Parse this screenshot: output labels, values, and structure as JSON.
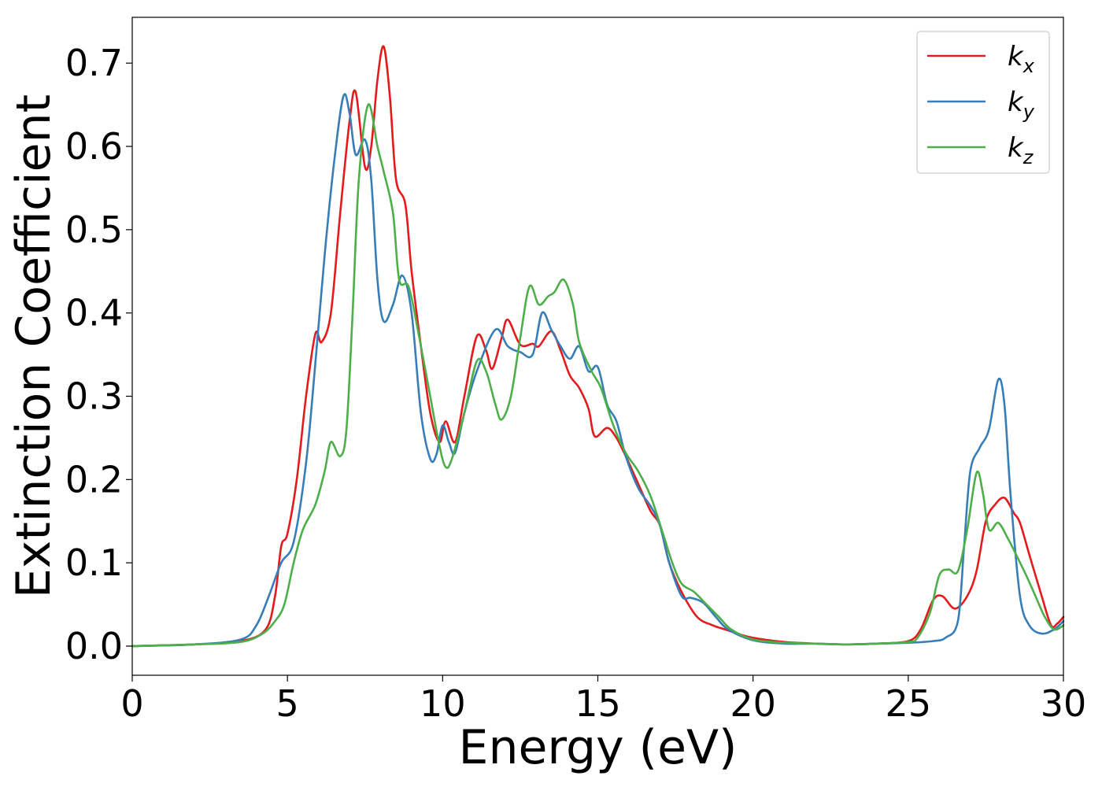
{
  "chart_data": {
    "type": "line",
    "title": "",
    "xlabel": "Energy (eV)",
    "ylabel": "Extinction Coefficient",
    "xlim": [
      0,
      30
    ],
    "ylim": [
      -0.035,
      0.755
    ],
    "xticks": [
      0,
      5,
      10,
      15,
      20,
      25,
      30
    ],
    "yticks": [
      0.0,
      0.1,
      0.2,
      0.3,
      0.4,
      0.5,
      0.6,
      0.7
    ],
    "xtick_labels": [
      "0",
      "5",
      "10",
      "15",
      "20",
      "25",
      "30"
    ],
    "ytick_labels": [
      "0.0",
      "0.1",
      "0.2",
      "0.3",
      "0.4",
      "0.5",
      "0.6",
      "0.7"
    ],
    "grid": false,
    "legend_position": "top-right",
    "series": [
      {
        "name": "k",
        "subscript": "x",
        "color": "#e41a1c",
        "points": [
          [
            0,
            0.0
          ],
          [
            2,
            0.002
          ],
          [
            3.5,
            0.006
          ],
          [
            4.3,
            0.02
          ],
          [
            4.6,
            0.06
          ],
          [
            4.8,
            0.12
          ],
          [
            5.0,
            0.135
          ],
          [
            5.3,
            0.2
          ],
          [
            5.6,
            0.3
          ],
          [
            5.9,
            0.375
          ],
          [
            6.1,
            0.365
          ],
          [
            6.4,
            0.4
          ],
          [
            6.7,
            0.52
          ],
          [
            7.0,
            0.63
          ],
          [
            7.2,
            0.665
          ],
          [
            7.5,
            0.575
          ],
          [
            7.7,
            0.6
          ],
          [
            7.9,
            0.68
          ],
          [
            8.1,
            0.72
          ],
          [
            8.3,
            0.66
          ],
          [
            8.5,
            0.56
          ],
          [
            8.8,
            0.53
          ],
          [
            9.0,
            0.45
          ],
          [
            9.3,
            0.36
          ],
          [
            9.6,
            0.28
          ],
          [
            9.9,
            0.245
          ],
          [
            10.1,
            0.27
          ],
          [
            10.4,
            0.245
          ],
          [
            10.7,
            0.3
          ],
          [
            11.1,
            0.372
          ],
          [
            11.4,
            0.355
          ],
          [
            11.6,
            0.333
          ],
          [
            11.9,
            0.37
          ],
          [
            12.1,
            0.392
          ],
          [
            12.5,
            0.362
          ],
          [
            12.9,
            0.363
          ],
          [
            13.1,
            0.36
          ],
          [
            13.5,
            0.378
          ],
          [
            13.8,
            0.355
          ],
          [
            14.1,
            0.325
          ],
          [
            14.4,
            0.31
          ],
          [
            14.7,
            0.285
          ],
          [
            14.9,
            0.252
          ],
          [
            15.3,
            0.262
          ],
          [
            15.6,
            0.25
          ],
          [
            15.9,
            0.228
          ],
          [
            16.3,
            0.195
          ],
          [
            16.7,
            0.162
          ],
          [
            17.0,
            0.145
          ],
          [
            17.3,
            0.1
          ],
          [
            17.7,
            0.065
          ],
          [
            18.2,
            0.035
          ],
          [
            18.7,
            0.025
          ],
          [
            19.1,
            0.02
          ],
          [
            19.5,
            0.015
          ],
          [
            20,
            0.01
          ],
          [
            21,
            0.005
          ],
          [
            22,
            0.003
          ],
          [
            23,
            0.002
          ],
          [
            24,
            0.003
          ],
          [
            25,
            0.006
          ],
          [
            25.4,
            0.02
          ],
          [
            25.8,
            0.055
          ],
          [
            26.1,
            0.06
          ],
          [
            26.5,
            0.045
          ],
          [
            26.9,
            0.06
          ],
          [
            27.2,
            0.09
          ],
          [
            27.5,
            0.15
          ],
          [
            27.8,
            0.17
          ],
          [
            28.1,
            0.178
          ],
          [
            28.4,
            0.16
          ],
          [
            28.6,
            0.148
          ],
          [
            28.9,
            0.11
          ],
          [
            29.3,
            0.06
          ],
          [
            29.6,
            0.025
          ],
          [
            29.8,
            0.027
          ],
          [
            30,
            0.035
          ]
        ]
      },
      {
        "name": "k",
        "subscript": "y",
        "color": "#377eb8",
        "points": [
          [
            0,
            0.0
          ],
          [
            2,
            0.002
          ],
          [
            3.5,
            0.008
          ],
          [
            4.0,
            0.025
          ],
          [
            4.4,
            0.06
          ],
          [
            4.8,
            0.1
          ],
          [
            5.2,
            0.125
          ],
          [
            5.6,
            0.22
          ],
          [
            5.9,
            0.34
          ],
          [
            6.2,
            0.47
          ],
          [
            6.5,
            0.58
          ],
          [
            6.8,
            0.66
          ],
          [
            7.0,
            0.64
          ],
          [
            7.2,
            0.59
          ],
          [
            7.5,
            0.608
          ],
          [
            7.7,
            0.56
          ],
          [
            7.9,
            0.44
          ],
          [
            8.1,
            0.39
          ],
          [
            8.4,
            0.41
          ],
          [
            8.7,
            0.445
          ],
          [
            9.0,
            0.4
          ],
          [
            9.3,
            0.28
          ],
          [
            9.6,
            0.225
          ],
          [
            9.8,
            0.23
          ],
          [
            10.0,
            0.265
          ],
          [
            10.2,
            0.245
          ],
          [
            10.4,
            0.232
          ],
          [
            10.7,
            0.28
          ],
          [
            11.1,
            0.33
          ],
          [
            11.7,
            0.38
          ],
          [
            12.1,
            0.36
          ],
          [
            12.5,
            0.353
          ],
          [
            12.9,
            0.35
          ],
          [
            13.2,
            0.4
          ],
          [
            13.5,
            0.38
          ],
          [
            13.8,
            0.36
          ],
          [
            14.1,
            0.345
          ],
          [
            14.4,
            0.36
          ],
          [
            14.7,
            0.33
          ],
          [
            15.0,
            0.335
          ],
          [
            15.3,
            0.29
          ],
          [
            15.6,
            0.27
          ],
          [
            15.9,
            0.228
          ],
          [
            16.3,
            0.19
          ],
          [
            16.7,
            0.168
          ],
          [
            17.0,
            0.145
          ],
          [
            17.3,
            0.1
          ],
          [
            17.7,
            0.06
          ],
          [
            18.0,
            0.058
          ],
          [
            18.4,
            0.052
          ],
          [
            18.8,
            0.035
          ],
          [
            19.2,
            0.02
          ],
          [
            20,
            0.007
          ],
          [
            21,
            0.003
          ],
          [
            22,
            0.003
          ],
          [
            23,
            0.002
          ],
          [
            24,
            0.003
          ],
          [
            25,
            0.004
          ],
          [
            25.8,
            0.006
          ],
          [
            26.2,
            0.01
          ],
          [
            26.6,
            0.03
          ],
          [
            26.8,
            0.12
          ],
          [
            27.0,
            0.21
          ],
          [
            27.3,
            0.238
          ],
          [
            27.6,
            0.26
          ],
          [
            27.9,
            0.32
          ],
          [
            28.1,
            0.29
          ],
          [
            28.3,
            0.18
          ],
          [
            28.6,
            0.06
          ],
          [
            28.9,
            0.025
          ],
          [
            29.3,
            0.015
          ],
          [
            29.7,
            0.02
          ],
          [
            30,
            0.03
          ]
        ]
      },
      {
        "name": "k",
        "subscript": "z",
        "color": "#4daf4a",
        "points": [
          [
            0,
            0.0
          ],
          [
            2,
            0.002
          ],
          [
            3.5,
            0.005
          ],
          [
            4.2,
            0.015
          ],
          [
            4.6,
            0.03
          ],
          [
            4.9,
            0.05
          ],
          [
            5.2,
            0.1
          ],
          [
            5.5,
            0.14
          ],
          [
            5.9,
            0.17
          ],
          [
            6.2,
            0.21
          ],
          [
            6.4,
            0.245
          ],
          [
            6.7,
            0.228
          ],
          [
            6.9,
            0.26
          ],
          [
            7.1,
            0.4
          ],
          [
            7.3,
            0.56
          ],
          [
            7.6,
            0.65
          ],
          [
            7.9,
            0.6
          ],
          [
            8.1,
            0.57
          ],
          [
            8.4,
            0.52
          ],
          [
            8.6,
            0.44
          ],
          [
            8.9,
            0.432
          ],
          [
            9.2,
            0.38
          ],
          [
            9.6,
            0.3
          ],
          [
            9.9,
            0.24
          ],
          [
            10.1,
            0.215
          ],
          [
            10.3,
            0.225
          ],
          [
            10.7,
            0.28
          ],
          [
            11.1,
            0.342
          ],
          [
            11.4,
            0.33
          ],
          [
            11.7,
            0.29
          ],
          [
            11.9,
            0.272
          ],
          [
            12.2,
            0.3
          ],
          [
            12.5,
            0.37
          ],
          [
            12.8,
            0.432
          ],
          [
            13.1,
            0.41
          ],
          [
            13.4,
            0.42
          ],
          [
            13.6,
            0.425
          ],
          [
            13.9,
            0.44
          ],
          [
            14.2,
            0.41
          ],
          [
            14.4,
            0.365
          ],
          [
            14.8,
            0.33
          ],
          [
            15.1,
            0.31
          ],
          [
            15.5,
            0.265
          ],
          [
            15.9,
            0.232
          ],
          [
            16.3,
            0.21
          ],
          [
            16.7,
            0.18
          ],
          [
            17.1,
            0.135
          ],
          [
            17.4,
            0.1
          ],
          [
            17.7,
            0.075
          ],
          [
            18.1,
            0.065
          ],
          [
            18.5,
            0.05
          ],
          [
            18.9,
            0.035
          ],
          [
            19.3,
            0.02
          ],
          [
            20,
            0.008
          ],
          [
            21,
            0.004
          ],
          [
            22,
            0.003
          ],
          [
            23,
            0.002
          ],
          [
            24,
            0.003
          ],
          [
            25,
            0.005
          ],
          [
            25.3,
            0.01
          ],
          [
            25.7,
            0.04
          ],
          [
            26.0,
            0.085
          ],
          [
            26.3,
            0.092
          ],
          [
            26.6,
            0.09
          ],
          [
            26.9,
            0.14
          ],
          [
            27.2,
            0.208
          ],
          [
            27.4,
            0.185
          ],
          [
            27.6,
            0.14
          ],
          [
            27.9,
            0.148
          ],
          [
            28.2,
            0.13
          ],
          [
            28.5,
            0.108
          ],
          [
            28.8,
            0.085
          ],
          [
            29.1,
            0.06
          ],
          [
            29.4,
            0.035
          ],
          [
            29.7,
            0.02
          ],
          [
            30,
            0.025
          ]
        ]
      }
    ]
  }
}
